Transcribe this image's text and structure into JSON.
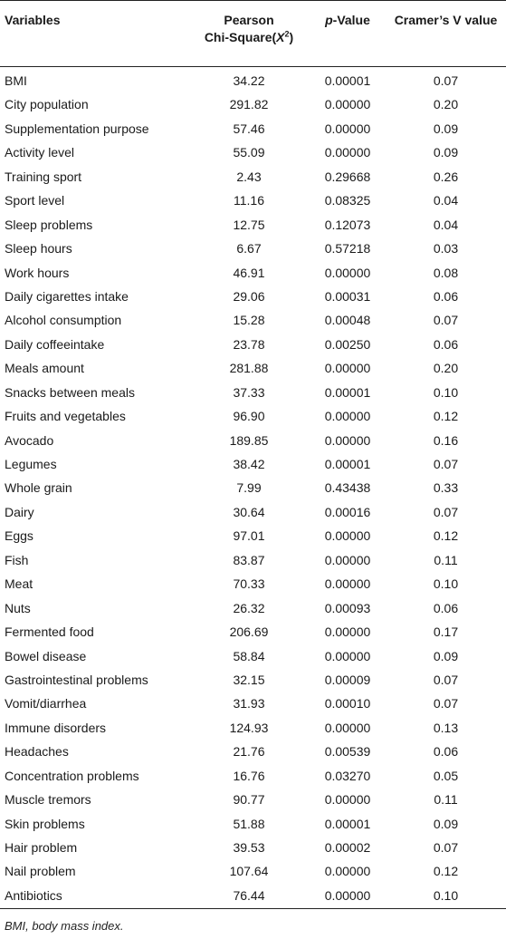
{
  "header": {
    "variables": "Variables",
    "chi_line1": "Pearson",
    "chi_line2_prefix": "Chi-Square(",
    "chi_symbol": "X",
    "chi_sup": "2",
    "chi_suffix": ")",
    "p_italic": "p",
    "p_rest": "-Value",
    "cramers": "Cramer’s V value"
  },
  "rows": [
    {
      "variable": "BMI",
      "chi": "34.22",
      "p": "0.00001",
      "v": "0.07"
    },
    {
      "variable": "City population",
      "chi": "291.82",
      "p": "0.00000",
      "v": "0.20"
    },
    {
      "variable": "Supplementation purpose",
      "chi": "57.46",
      "p": "0.00000",
      "v": "0.09"
    },
    {
      "variable": "Activity level",
      "chi": "55.09",
      "p": "0.00000",
      "v": "0.09"
    },
    {
      "variable": "Training sport",
      "chi": "2.43",
      "p": "0.29668",
      "v": "0.26"
    },
    {
      "variable": "Sport level",
      "chi": "11.16",
      "p": "0.08325",
      "v": "0.04"
    },
    {
      "variable": "Sleep problems",
      "chi": "12.75",
      "p": "0.12073",
      "v": "0.04"
    },
    {
      "variable": "Sleep hours",
      "chi": "6.67",
      "p": "0.57218",
      "v": "0.03"
    },
    {
      "variable": "Work hours",
      "chi": "46.91",
      "p": "0.00000",
      "v": "0.08"
    },
    {
      "variable": "Daily cigarettes intake",
      "chi": "29.06",
      "p": "0.00031",
      "v": "0.06"
    },
    {
      "variable": "Alcohol consumption",
      "chi": "15.28",
      "p": "0.00048",
      "v": "0.07"
    },
    {
      "variable": "Daily coffeeintake",
      "chi": "23.78",
      "p": "0.00250",
      "v": "0.06"
    },
    {
      "variable": "Meals amount",
      "chi": "281.88",
      "p": "0.00000",
      "v": "0.20"
    },
    {
      "variable": "Snacks between meals",
      "chi": "37.33",
      "p": "0.00001",
      "v": "0.10"
    },
    {
      "variable": "Fruits and vegetables",
      "chi": "96.90",
      "p": "0.00000",
      "v": "0.12"
    },
    {
      "variable": "Avocado",
      "chi": "189.85",
      "p": "0.00000",
      "v": "0.16"
    },
    {
      "variable": "Legumes",
      "chi": "38.42",
      "p": "0.00001",
      "v": "0.07"
    },
    {
      "variable": "Whole grain",
      "chi": "7.99",
      "p": "0.43438",
      "v": "0.33"
    },
    {
      "variable": "Dairy",
      "chi": "30.64",
      "p": "0.00016",
      "v": "0.07"
    },
    {
      "variable": "Eggs",
      "chi": "97.01",
      "p": "0.00000",
      "v": "0.12"
    },
    {
      "variable": "Fish",
      "chi": "83.87",
      "p": "0.00000",
      "v": "0.11"
    },
    {
      "variable": "Meat",
      "chi": "70.33",
      "p": "0.00000",
      "v": "0.10"
    },
    {
      "variable": "Nuts",
      "chi": "26.32",
      "p": "0.00093",
      "v": "0.06"
    },
    {
      "variable": "Fermented food",
      "chi": "206.69",
      "p": "0.00000",
      "v": "0.17"
    },
    {
      "variable": "Bowel disease",
      "chi": "58.84",
      "p": "0.00000",
      "v": "0.09"
    },
    {
      "variable": "Gastrointestinal problems",
      "chi": "32.15",
      "p": "0.00009",
      "v": "0.07"
    },
    {
      "variable": "Vomit/diarrhea",
      "chi": "31.93",
      "p": "0.00010",
      "v": "0.07"
    },
    {
      "variable": "Immune disorders",
      "chi": "124.93",
      "p": "0.00000",
      "v": "0.13"
    },
    {
      "variable": "Headaches",
      "chi": "21.76",
      "p": "0.00539",
      "v": "0.06"
    },
    {
      "variable": "Concentration problems",
      "chi": "16.76",
      "p": "0.03270",
      "v": "0.05"
    },
    {
      "variable": "Muscle tremors",
      "chi": "90.77",
      "p": "0.00000",
      "v": "0.11"
    },
    {
      "variable": "Skin problems",
      "chi": "51.88",
      "p": "0.00001",
      "v": "0.09"
    },
    {
      "variable": "Hair problem",
      "chi": "39.53",
      "p": "0.00002",
      "v": "0.07"
    },
    {
      "variable": "Nail problem",
      "chi": "107.64",
      "p": "0.00000",
      "v": "0.12"
    },
    {
      "variable": "Antibiotics",
      "chi": "76.44",
      "p": "0.00000",
      "v": "0.10"
    }
  ],
  "footnote": "BMI, body mass index."
}
